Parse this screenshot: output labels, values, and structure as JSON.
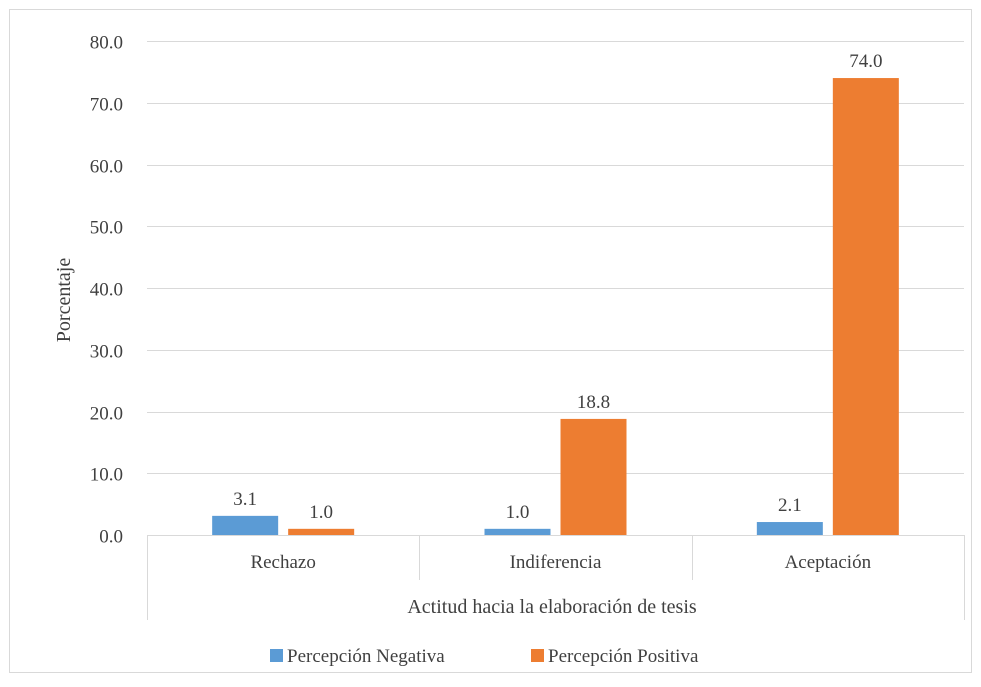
{
  "chart_data": {
    "type": "bar",
    "categories": [
      "Rechazo",
      "Indiferencia",
      "Aceptación"
    ],
    "series": [
      {
        "name": "Percepción Negativa",
        "values": [
          3.1,
          1.0,
          2.1
        ],
        "color": "#5B9BD5"
      },
      {
        "name": "Percepción Positiva",
        "values": [
          1.0,
          18.8,
          74.0
        ],
        "color": "#ED7D31"
      }
    ],
    "data_labels": [
      [
        "3.1",
        "1.0",
        "2.1"
      ],
      [
        "1.0",
        "18.8",
        "74.0"
      ]
    ],
    "xlabel": "Actitud hacia la elaboración de tesis",
    "ylabel": "Porcentaje",
    "ylim": [
      0,
      80
    ],
    "yticks": [
      "0.0",
      "10.0",
      "20.0",
      "30.0",
      "40.0",
      "50.0",
      "60.0",
      "70.0",
      "80.0"
    ],
    "grid": true,
    "legend_position": "bottom",
    "gridline_color": "#D9D9D9",
    "text_color": "#404040"
  }
}
